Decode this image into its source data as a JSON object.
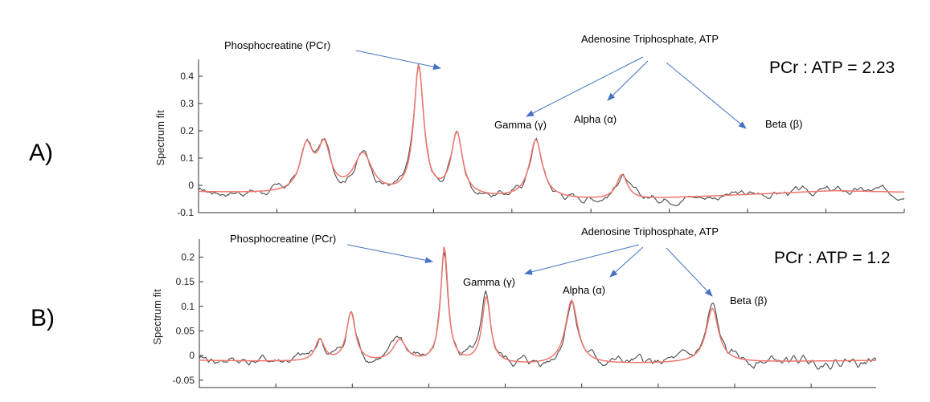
{
  "chart_data": [
    {
      "type": "line",
      "panel_label": "A)",
      "ratio_text": "PCr : ATP = 2.23",
      "ylabel": "Spectrum fit",
      "ylim": [
        -0.1,
        0.45
      ],
      "yticks": [
        -0.1,
        0,
        0.1,
        0.2,
        0.3,
        0.4
      ],
      "ytick_labels": [
        "-0.1",
        "0",
        "0.1",
        "0.2",
        "0.3",
        "0.4"
      ],
      "xlim": [
        0,
        1
      ],
      "xticks": [
        0,
        0.111,
        0.222,
        0.333,
        0.444,
        0.556,
        0.667,
        0.778,
        0.889,
        1
      ],
      "baseline_fit": [
        [
          0,
          -0.025
        ],
        [
          0.3,
          -0.045
        ],
        [
          0.6,
          -0.055
        ],
        [
          0.9,
          -0.02
        ],
        [
          1,
          -0.025
        ]
      ],
      "peaks": [
        {
          "x": 0.153,
          "height": 0.165,
          "width": 0.011
        },
        {
          "x": 0.178,
          "height": 0.165,
          "width": 0.011
        },
        {
          "x": 0.233,
          "height": 0.145,
          "width": 0.016
        },
        {
          "x": 0.312,
          "height": 0.468,
          "width": 0.0085
        },
        {
          "x": 0.366,
          "height": 0.23,
          "width": 0.0095
        },
        {
          "x": 0.478,
          "height": 0.215,
          "width": 0.011
        },
        {
          "x": 0.6,
          "height": 0.092,
          "width": 0.0095
        }
      ],
      "annotations": {
        "pcr": "Phosphocreatine (PCr)",
        "atp": "Adenosine Triphosphate, ATP",
        "gamma": "Gamma (γ)",
        "alpha": "Alpha (α)",
        "beta": "Beta (β)"
      },
      "colors": {
        "measured": "#4a4a4a",
        "fit": "#f0766c",
        "arrow": "#4472c4"
      }
    },
    {
      "type": "line",
      "panel_label": "B)",
      "ratio_text": "PCr : ATP = 1.2",
      "ylabel": "Spectrum fit",
      "ylim": [
        -0.065,
        0.23
      ],
      "yticks": [
        -0.05,
        0,
        0.05,
        0.1,
        0.15,
        0.2
      ],
      "ytick_labels": [
        "-0.05",
        "0",
        "0.05",
        "0.1",
        "0.15",
        "0.2"
      ],
      "xlim": [
        0,
        1
      ],
      "xticks": [
        0,
        0.113,
        0.226,
        0.339,
        0.452,
        0.565,
        0.678,
        0.791,
        0.904
      ],
      "baseline_fit": [
        [
          0,
          -0.01
        ],
        [
          0.5,
          -0.02
        ],
        [
          0.75,
          -0.015
        ],
        [
          1,
          -0.01
        ]
      ],
      "peaks": [
        {
          "x": 0.178,
          "height": 0.045,
          "width": 0.008
        },
        {
          "x": 0.224,
          "height": 0.1,
          "width": 0.008
        },
        {
          "x": 0.296,
          "height": 0.045,
          "width": 0.012
        },
        {
          "x": 0.362,
          "height": 0.235,
          "width": 0.0065
        },
        {
          "x": 0.424,
          "height": 0.135,
          "width": 0.0075
        },
        {
          "x": 0.55,
          "height": 0.13,
          "width": 0.011
        },
        {
          "x": 0.758,
          "height": 0.11,
          "width": 0.011
        }
      ],
      "annotations": {
        "pcr": "Phosphocreatine (PCr)",
        "atp": "Adenosine Triphosphate, ATP",
        "gamma": "Gamma (γ)",
        "alpha": "Alpha (α)",
        "beta": "Beta (β)"
      },
      "colors": {
        "measured": "#4a4a4a",
        "fit": "#f0766c",
        "arrow": "#4472c4"
      }
    }
  ]
}
